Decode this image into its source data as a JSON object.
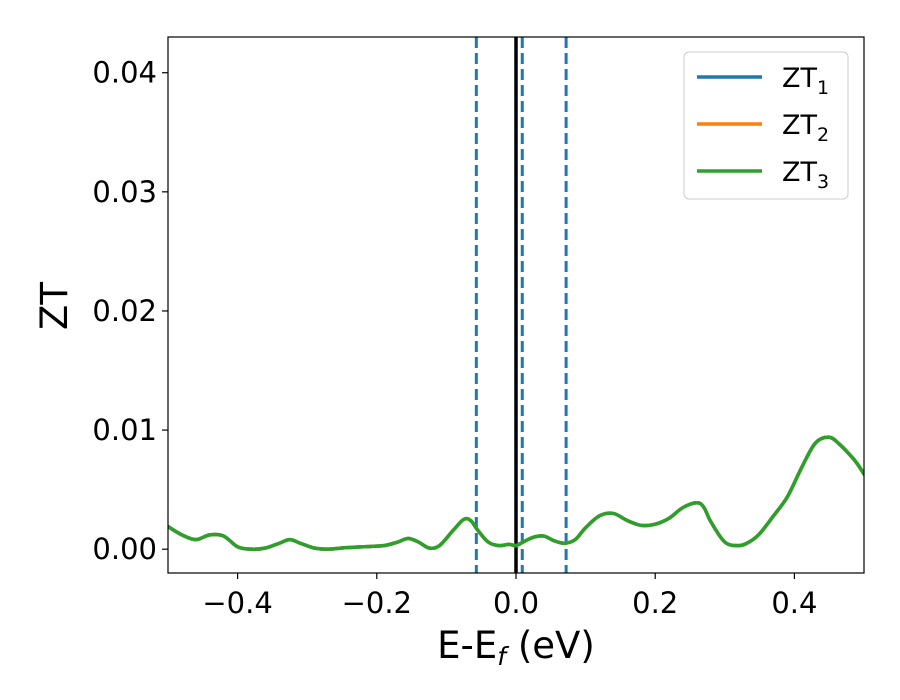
{
  "chart_data": {
    "type": "line",
    "title": "",
    "xlabel": {
      "main": "E-E",
      "sub": "f",
      "suffix": " (eV)"
    },
    "ylabel": "ZT",
    "xlim": [
      -0.5,
      0.5
    ],
    "ylim": [
      -0.002,
      0.043
    ],
    "x_ticks": [
      -0.4,
      -0.2,
      0.0,
      0.2,
      0.4
    ],
    "x_tick_labels": [
      "−0.4",
      "−0.2",
      "0.0",
      "0.2",
      "0.4"
    ],
    "y_ticks": [
      0.0,
      0.01,
      0.02,
      0.03,
      0.04
    ],
    "y_tick_labels": [
      "0.00",
      "0.01",
      "0.02",
      "0.03",
      "0.04"
    ],
    "grid": false,
    "legend": "top-right",
    "vertical_lines": [
      {
        "x": -0.057,
        "style": "dashed",
        "color": "#1f77b4"
      },
      {
        "x": 0.0,
        "style": "solid",
        "color": "#000000"
      },
      {
        "x": 0.009,
        "style": "dashed",
        "color": "#1f77b4"
      },
      {
        "x": 0.072,
        "style": "dashed",
        "color": "#1f77b4"
      }
    ],
    "x": [
      -0.5,
      -0.48,
      -0.46,
      -0.44,
      -0.42,
      -0.4,
      -0.38,
      -0.36,
      -0.34,
      -0.325,
      -0.31,
      -0.29,
      -0.27,
      -0.25,
      -0.22,
      -0.19,
      -0.17,
      -0.155,
      -0.14,
      -0.125,
      -0.11,
      -0.09,
      -0.075,
      -0.065,
      -0.055,
      -0.04,
      -0.025,
      -0.01,
      0.0,
      0.01,
      0.025,
      0.04,
      0.055,
      0.07,
      0.085,
      0.1,
      0.12,
      0.14,
      0.16,
      0.18,
      0.2,
      0.22,
      0.24,
      0.26,
      0.27,
      0.28,
      0.3,
      0.32,
      0.335,
      0.35,
      0.37,
      0.39,
      0.41,
      0.43,
      0.45,
      0.465,
      0.48,
      0.49,
      0.5
    ],
    "series": [
      {
        "name": "ZT",
        "sub": "1",
        "color": "#1f77b4",
        "values": [
          0.0019,
          0.0012,
          0.0008,
          0.0012,
          0.0011,
          0.0002,
          0.0,
          0.0001,
          0.0005,
          0.0008,
          0.0005,
          0.0001,
          0.0,
          0.0001,
          0.0002,
          0.0003,
          0.0006,
          0.0009,
          0.0006,
          0.0001,
          0.0003,
          0.0016,
          0.0025,
          0.0024,
          0.0016,
          0.0006,
          0.0003,
          0.0004,
          0.0003,
          0.0006,
          0.001,
          0.0011,
          0.0007,
          0.0005,
          0.0008,
          0.0018,
          0.0028,
          0.003,
          0.0024,
          0.002,
          0.0021,
          0.0026,
          0.0035,
          0.0039,
          0.0035,
          0.0023,
          0.0006,
          0.0003,
          0.0006,
          0.0013,
          0.0028,
          0.0044,
          0.0068,
          0.0089,
          0.0094,
          0.0088,
          0.0079,
          0.0072,
          0.0063
        ]
      },
      {
        "name": "ZT",
        "sub": "2",
        "color": "#ff7f0e",
        "values": [
          0.0019,
          0.0012,
          0.0008,
          0.0012,
          0.0011,
          0.0002,
          0.0,
          0.0001,
          0.0005,
          0.0008,
          0.0005,
          0.0001,
          0.0,
          0.0001,
          0.0002,
          0.0003,
          0.0006,
          0.0009,
          0.0006,
          0.0001,
          0.0003,
          0.0016,
          0.0025,
          0.0024,
          0.0016,
          0.0006,
          0.0003,
          0.0004,
          0.0003,
          0.0006,
          0.001,
          0.0011,
          0.0007,
          0.0005,
          0.0008,
          0.0018,
          0.0028,
          0.003,
          0.0024,
          0.002,
          0.0021,
          0.0026,
          0.0035,
          0.0039,
          0.0035,
          0.0023,
          0.0006,
          0.0003,
          0.0006,
          0.0013,
          0.0028,
          0.0044,
          0.0068,
          0.0089,
          0.0094,
          0.0088,
          0.0079,
          0.0072,
          0.0063
        ]
      },
      {
        "name": "ZT",
        "sub": "3",
        "color": "#2ca02c",
        "values": [
          0.0019,
          0.0012,
          0.0008,
          0.0012,
          0.0011,
          0.0002,
          0.0,
          0.0001,
          0.0005,
          0.0008,
          0.0005,
          0.0001,
          0.0,
          0.0001,
          0.0002,
          0.0003,
          0.0006,
          0.0009,
          0.0006,
          0.0001,
          0.0003,
          0.0016,
          0.0025,
          0.0024,
          0.0016,
          0.0006,
          0.0003,
          0.0004,
          0.0003,
          0.0006,
          0.001,
          0.0011,
          0.0007,
          0.0005,
          0.0008,
          0.0018,
          0.0028,
          0.003,
          0.0024,
          0.002,
          0.0021,
          0.0026,
          0.0035,
          0.0039,
          0.0035,
          0.0023,
          0.0006,
          0.0003,
          0.0006,
          0.0013,
          0.0028,
          0.0044,
          0.0068,
          0.0089,
          0.0094,
          0.0088,
          0.0079,
          0.0072,
          0.0063
        ]
      }
    ]
  }
}
